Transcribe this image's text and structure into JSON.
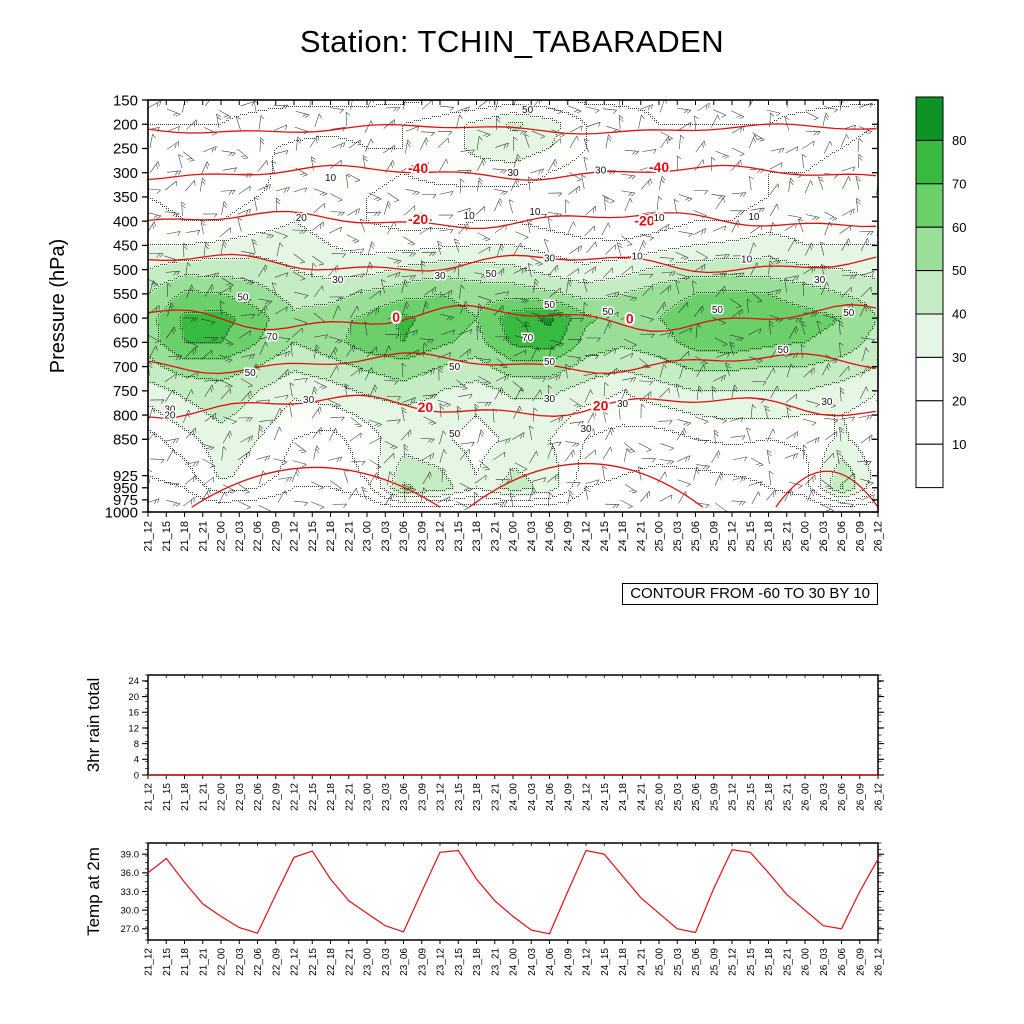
{
  "title": "Station: TCHIN_TABARADEN",
  "contour_note": "CONTOUR FROM -60 TO 30 BY 10",
  "colors": {
    "line_red": "#e01010",
    "axis_black": "#000000",
    "band_colors": {
      "10": "#ffffff",
      "20": "#fcfefc",
      "30": "#e6f6e5",
      "40": "#c5ecc3",
      "50": "#9adf98",
      "60": "#6bcf6a",
      "70": "#38ba41",
      "80": "#0e9425"
    }
  },
  "times": [
    "21_12",
    "21_15",
    "21_18",
    "21_21",
    "22_00",
    "22_03",
    "22_06",
    "22_09",
    "22_12",
    "22_15",
    "22_18",
    "22_21",
    "23_00",
    "23_03",
    "23_06",
    "23_09",
    "23_12",
    "23_15",
    "23_18",
    "23_21",
    "24_00",
    "24_03",
    "24_06",
    "24_09",
    "24_12",
    "24_15",
    "24_18",
    "24_21",
    "25_00",
    "25_03",
    "25_06",
    "25_09",
    "25_12",
    "25_15",
    "25_18",
    "25_21",
    "26_00",
    "26_03",
    "26_06",
    "26_09",
    "26_12"
  ],
  "chart_data": [
    {
      "type": "heatmap",
      "title": "",
      "ylabel": "Pressure (hPa)",
      "pressure_ticks": [
        150,
        200,
        250,
        300,
        350,
        400,
        450,
        500,
        550,
        600,
        650,
        700,
        750,
        800,
        850,
        925,
        950,
        975,
        1000
      ],
      "ylim": [
        150,
        1000
      ],
      "colorbar_labels": [
        "80",
        "70",
        "60",
        "50",
        "40",
        "30",
        "20",
        "10"
      ],
      "colorbar_band_keys": [
        80,
        70,
        60,
        50,
        40,
        30,
        20,
        10,
        10
      ],
      "contour_note": "CONTOUR FROM -60 TO 30 BY 10",
      "wind_symbols": "wind barbs plotted at all times and pressure levels",
      "red_contours": [
        {
          "pressure": 210,
          "amplitude": 3.5
        },
        {
          "pressure": 300,
          "amplitude": 5
        },
        {
          "pressure": 398,
          "amplitude": 6
        },
        {
          "pressure": 487,
          "amplitude": 7
        },
        {
          "pressure": 600,
          "amplitude": 9
        },
        {
          "pressure": 693,
          "amplitude": 7
        },
        {
          "pressure": 782,
          "amplitude": 8
        }
      ],
      "red_arcs": [
        {
          "x0": 0.06,
          "x1": 0.4,
          "p_top": 908,
          "p_base": 990
        },
        {
          "x0": 0.44,
          "x1": 0.76,
          "p_top": 900,
          "p_base": 990
        },
        {
          "x0": 0.86,
          "x1": 1.0,
          "p_top": 916,
          "p_base": 990
        }
      ],
      "red_labels": [
        {
          "text": "-40",
          "f": 0.37,
          "p": 290
        },
        {
          "text": "-40",
          "f": 0.7,
          "p": 288
        },
        {
          "text": "-20",
          "f": 0.37,
          "p": 396
        },
        {
          "text": "-20",
          "f": 0.68,
          "p": 399
        },
        {
          "text": "0",
          "f": 0.34,
          "p": 598
        },
        {
          "text": "0",
          "f": 0.66,
          "p": 601
        },
        {
          "text": "20",
          "f": 0.38,
          "p": 784
        },
        {
          "text": "20",
          "f": 0.62,
          "p": 780
        }
      ],
      "black_labels": [
        {
          "text": "50",
          "f": 0.52,
          "p": 170
        },
        {
          "text": "10",
          "f": 0.25,
          "p": 310
        },
        {
          "text": "30",
          "f": 0.5,
          "p": 300
        },
        {
          "text": "30",
          "f": 0.62,
          "p": 294
        },
        {
          "text": "20",
          "f": 0.21,
          "p": 392
        },
        {
          "text": "10",
          "f": 0.44,
          "p": 388
        },
        {
          "text": "10",
          "f": 0.53,
          "p": 380
        },
        {
          "text": "10",
          "f": 0.7,
          "p": 392
        },
        {
          "text": "10",
          "f": 0.83,
          "p": 390
        },
        {
          "text": "30",
          "f": 0.55,
          "p": 476
        },
        {
          "text": "10",
          "f": 0.67,
          "p": 472
        },
        {
          "text": "10",
          "f": 0.82,
          "p": 478
        },
        {
          "text": "30",
          "f": 0.26,
          "p": 520
        },
        {
          "text": "30",
          "f": 0.4,
          "p": 512
        },
        {
          "text": "50",
          "f": 0.47,
          "p": 508
        },
        {
          "text": "30",
          "f": 0.92,
          "p": 520
        },
        {
          "text": "50",
          "f": 0.13,
          "p": 556
        },
        {
          "text": "50",
          "f": 0.55,
          "p": 572
        },
        {
          "text": "50",
          "f": 0.63,
          "p": 586
        },
        {
          "text": "50",
          "f": 0.78,
          "p": 582
        },
        {
          "text": "50",
          "f": 0.96,
          "p": 588
        },
        {
          "text": "70",
          "f": 0.17,
          "p": 638
        },
        {
          "text": "70",
          "f": 0.52,
          "p": 640
        },
        {
          "text": "50",
          "f": 0.14,
          "p": 712
        },
        {
          "text": "50",
          "f": 0.42,
          "p": 700
        },
        {
          "text": "50",
          "f": 0.55,
          "p": 690
        },
        {
          "text": "50",
          "f": 0.87,
          "p": 665
        },
        {
          "text": "30",
          "f": 0.22,
          "p": 768
        },
        {
          "text": "30",
          "f": 0.55,
          "p": 766
        },
        {
          "text": "30",
          "f": 0.65,
          "p": 776
        },
        {
          "text": "30",
          "f": 0.93,
          "p": 772
        },
        {
          "text": "30",
          "f": 0.03,
          "p": 788
        },
        {
          "text": "20",
          "f": 0.03,
          "p": 800
        },
        {
          "text": "50",
          "f": 0.42,
          "p": 838
        },
        {
          "text": "30",
          "f": 0.6,
          "p": 828
        }
      ],
      "grid_pressures": [
        150,
        200,
        250,
        300,
        350,
        400,
        450,
        500,
        550,
        600,
        650,
        700,
        750,
        800,
        850,
        925,
        950,
        1000
      ],
      "grid_times": [
        "21_12",
        "21_18",
        "22_00",
        "22_06",
        "22_12",
        "22_18",
        "23_00",
        "23_06",
        "23_12",
        "23_18",
        "24_00",
        "24_06",
        "24_12",
        "24_18",
        "25_00",
        "25_06",
        "25_12",
        "25_18",
        "26_00",
        "26_06",
        "26_12"
      ],
      "shaded_grid": [
        [
          8,
          8,
          8,
          8,
          8,
          8,
          8,
          8,
          10,
          12,
          15,
          12,
          8,
          8,
          8,
          8,
          8,
          8,
          8,
          8,
          8
        ],
        [
          10,
          10,
          10,
          12,
          15,
          15,
          15,
          20,
          25,
          32,
          42,
          35,
          20,
          15,
          10,
          10,
          10,
          10,
          12,
          15,
          20
        ],
        [
          15,
          15,
          15,
          18,
          22,
          25,
          20,
          20,
          26,
          32,
          36,
          30,
          20,
          15,
          10,
          10,
          12,
          15,
          16,
          20,
          25
        ],
        [
          20,
          20,
          16,
          16,
          26,
          30,
          25,
          20,
          25,
          26,
          26,
          20,
          15,
          14,
          10,
          12,
          15,
          20,
          20,
          25,
          30
        ],
        [
          20,
          16,
          15,
          20,
          25,
          25,
          20,
          15,
          15,
          16,
          16,
          15,
          10,
          10,
          12,
          15,
          16,
          20,
          20,
          20,
          25
        ],
        [
          25,
          20,
          20,
          25,
          30,
          25,
          20,
          16,
          16,
          20,
          20,
          16,
          14,
          12,
          15,
          20,
          20,
          25,
          25,
          25,
          25
        ],
        [
          30,
          30,
          32,
          35,
          35,
          30,
          26,
          26,
          28,
          30,
          30,
          26,
          22,
          22,
          26,
          30,
          32,
          35,
          30,
          30,
          30
        ],
        [
          40,
          46,
          46,
          45,
          40,
          36,
          36,
          42,
          46,
          44,
          42,
          36,
          32,
          36,
          42,
          46,
          46,
          45,
          42,
          40,
          36
        ],
        [
          50,
          62,
          60,
          54,
          46,
          46,
          52,
          56,
          60,
          56,
          56,
          52,
          46,
          50,
          56,
          60,
          62,
          60,
          55,
          50,
          46
        ],
        [
          56,
          72,
          74,
          64,
          52,
          56,
          62,
          72,
          66,
          60,
          76,
          82,
          62,
          56,
          60,
          66,
          70,
          66,
          64,
          60,
          50
        ],
        [
          55,
          70,
          70,
          60,
          50,
          56,
          66,
          70,
          62,
          56,
          72,
          76,
          56,
          52,
          56,
          64,
          66,
          62,
          60,
          56,
          46
        ],
        [
          46,
          56,
          56,
          50,
          42,
          46,
          52,
          56,
          50,
          46,
          56,
          56,
          46,
          42,
          46,
          52,
          52,
          50,
          50,
          46,
          40
        ],
        [
          36,
          42,
          46,
          40,
          32,
          36,
          42,
          46,
          40,
          36,
          42,
          42,
          36,
          30,
          36,
          40,
          40,
          40,
          40,
          36,
          30
        ],
        [
          26,
          36,
          42,
          36,
          26,
          26,
          32,
          36,
          36,
          30,
          36,
          36,
          26,
          24,
          26,
          30,
          32,
          32,
          30,
          30,
          26
        ],
        [
          16,
          26,
          36,
          30,
          20,
          16,
          26,
          36,
          32,
          26,
          32,
          30,
          20,
          15,
          15,
          20,
          22,
          20,
          22,
          32,
          22
        ],
        [
          10,
          15,
          32,
          26,
          15,
          10,
          22,
          46,
          42,
          30,
          42,
          36,
          15,
          10,
          8,
          8,
          10,
          12,
          16,
          48,
          26
        ],
        [
          6,
          10,
          26,
          20,
          10,
          10,
          16,
          52,
          46,
          30,
          46,
          36,
          10,
          6,
          5,
          5,
          6,
          10,
          15,
          52,
          20
        ],
        [
          0,
          0,
          0,
          0,
          0,
          0,
          0,
          0,
          0,
          0,
          0,
          0,
          0,
          0,
          0,
          0,
          0,
          0,
          0,
          0,
          0
        ]
      ]
    },
    {
      "type": "line",
      "ylabel": "3hr rain total",
      "y_ticks": [
        0,
        4,
        8,
        12,
        16,
        20,
        24
      ],
      "y_tick_labels": [
        "0",
        "4",
        "8",
        "12",
        "16",
        "20",
        "24"
      ],
      "ylim": [
        0,
        25.5
      ],
      "values": [
        0,
        0,
        0,
        0,
        0,
        0,
        0,
        0,
        0,
        0,
        0,
        0,
        0,
        0,
        0,
        0,
        0,
        0,
        0,
        0,
        0,
        0,
        0,
        0,
        0,
        0,
        0,
        0,
        0,
        0,
        0,
        0,
        0,
        0,
        0,
        0,
        0,
        0,
        0,
        0,
        0
      ]
    },
    {
      "type": "line",
      "ylabel": "Temp at 2m",
      "y_ticks": [
        27,
        30,
        33,
        36,
        39
      ],
      "y_tick_labels": [
        "27.0",
        "30.0",
        "33.0",
        "36.0",
        "39.0"
      ],
      "ylim": [
        25.2,
        40.8
      ],
      "values": [
        36.0,
        38.3,
        34.5,
        31.0,
        29.0,
        27.2,
        26.3,
        32.5,
        38.5,
        39.5,
        35.0,
        31.5,
        29.5,
        27.5,
        26.5,
        33.0,
        39.3,
        39.6,
        35.0,
        31.5,
        29.0,
        26.8,
        26.2,
        33.0,
        39.6,
        39.0,
        35.5,
        32.0,
        29.5,
        27.0,
        26.4,
        33.5,
        39.7,
        39.3,
        36.0,
        32.5,
        30.0,
        27.5,
        27.0,
        33.0,
        38.2
      ]
    }
  ]
}
